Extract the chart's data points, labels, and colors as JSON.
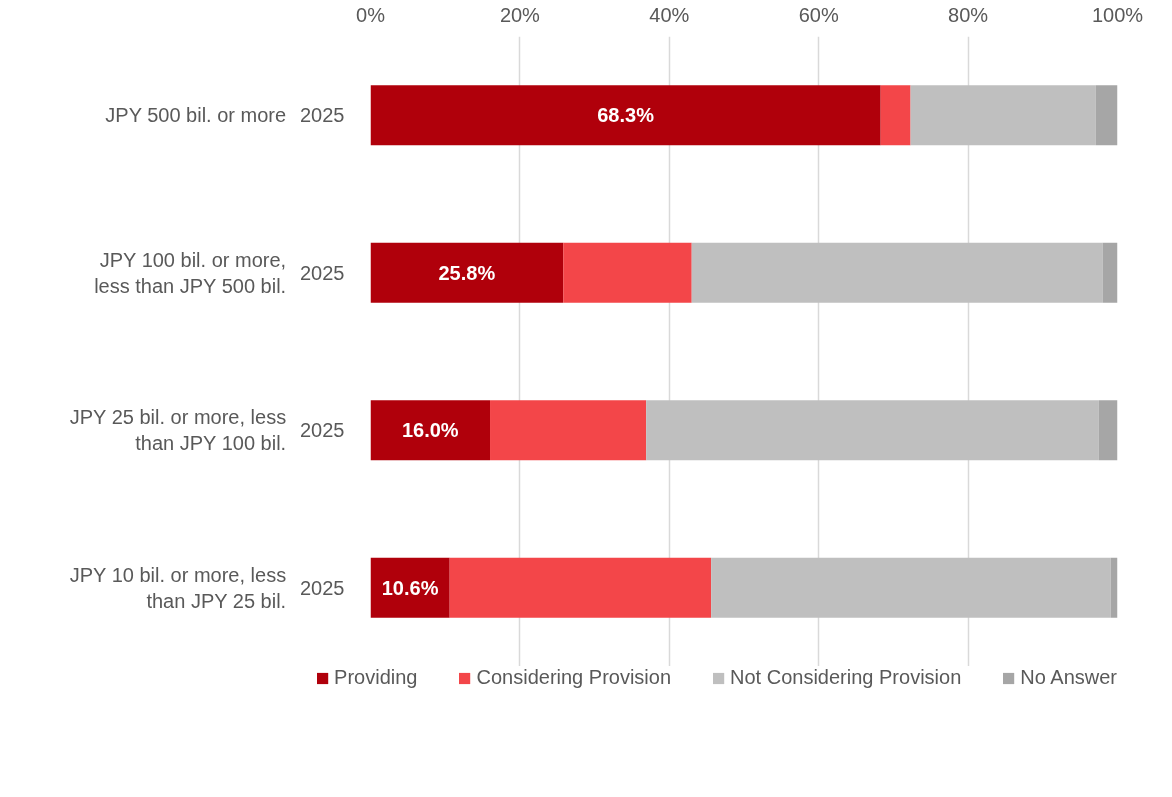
{
  "chart_data": {
    "type": "bar",
    "orientation": "horizontal",
    "stacked": true,
    "categories": [
      "JPY 500 bil. or more",
      "JPY 100 bil. or more, less than JPY 500 bil.",
      "JPY 25 bil. or more, less than JPY 100 bil.",
      "JPY 10 bil. or more, less than JPY 25 bil."
    ],
    "series": [
      {
        "name": "Providing",
        "color": "#b0000b",
        "values": [
          68.3,
          25.8,
          16.0,
          10.6
        ],
        "value_labels": [
          "68.3%",
          "25.8%",
          "16.0%",
          "10.6%"
        ]
      },
      {
        "name": "Considering Provision",
        "color": "#f34649",
        "values": [
          4.0,
          17.2,
          20.9,
          35.0
        ]
      },
      {
        "name": "Not Considering Provision",
        "color": "#bfbfbf",
        "values": [
          24.8,
          55.0,
          60.6,
          53.5
        ]
      },
      {
        "name": "No Answer",
        "color": "#a6a6a6",
        "values": [
          2.9,
          2.0,
          2.5,
          0.9
        ]
      }
    ],
    "annotations": [
      "2025",
      "2025",
      "2025",
      "2025"
    ],
    "xlim": [
      0,
      100
    ],
    "xticks": [
      {
        "value": 0,
        "label": "0%"
      },
      {
        "value": 20,
        "label": "20%"
      },
      {
        "value": 40,
        "label": "40%"
      },
      {
        "value": 60,
        "label": "60%"
      },
      {
        "value": 80,
        "label": "80%"
      },
      {
        "value": 100,
        "label": "100%"
      }
    ],
    "grid": "x",
    "legend": "bottom"
  }
}
